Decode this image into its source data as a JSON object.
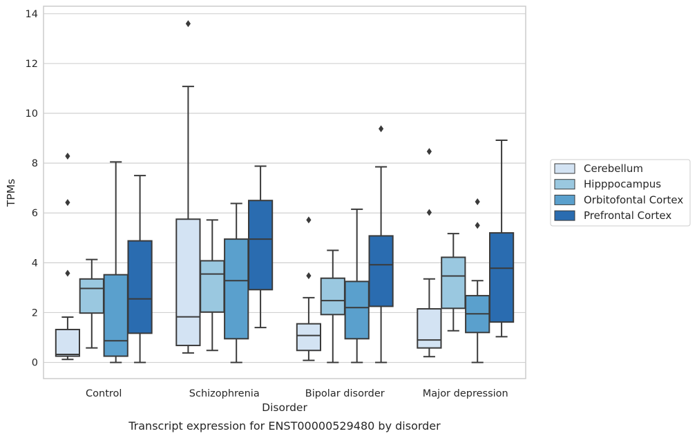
{
  "chart_data": {
    "type": "box",
    "xlabel": "Disorder",
    "ylabel": "TPMs",
    "caption": "Transcript expression for ENST00000529480 by disorder",
    "categories": [
      "Control",
      "Schizophrenia",
      "Bipolar disorder",
      "Major depression"
    ],
    "ylim": [
      -0.65,
      14.3
    ],
    "yticks": [
      0,
      2,
      4,
      6,
      8,
      10,
      12,
      14
    ],
    "grid": true,
    "legend_position": "right",
    "series": [
      {
        "name": "Cerebellum",
        "color": "#d3e3f3",
        "boxes": [
          {
            "q1": 0.25,
            "median": 0.32,
            "q3": 1.32,
            "whislo": 0.12,
            "whishi": 1.82,
            "fliers": [
              3.58,
              6.42,
              8.28
            ]
          },
          {
            "q1": 0.68,
            "median": 1.83,
            "q3": 5.75,
            "whislo": 0.38,
            "whishi": 11.08,
            "fliers": [
              13.6
            ]
          },
          {
            "q1": 0.48,
            "median": 1.08,
            "q3": 1.55,
            "whislo": 0.08,
            "whishi": 2.6,
            "fliers": [
              3.48,
              5.72
            ]
          },
          {
            "q1": 0.58,
            "median": 0.9,
            "q3": 2.15,
            "whislo": 0.23,
            "whishi": 3.35,
            "fliers": [
              6.02,
              8.47
            ]
          }
        ]
      },
      {
        "name": "Hipppocampus",
        "color": "#9ac8e0",
        "boxes": [
          {
            "q1": 1.98,
            "median": 2.97,
            "q3": 3.35,
            "whislo": 0.58,
            "whishi": 4.13,
            "fliers": []
          },
          {
            "q1": 2.02,
            "median": 3.55,
            "q3": 4.08,
            "whislo": 0.48,
            "whishi": 5.72,
            "fliers": []
          },
          {
            "q1": 1.92,
            "median": 2.48,
            "q3": 3.38,
            "whislo": 0.0,
            "whishi": 4.5,
            "fliers": []
          },
          {
            "q1": 2.17,
            "median": 3.47,
            "q3": 4.22,
            "whislo": 1.27,
            "whishi": 5.17,
            "fliers": []
          }
        ]
      },
      {
        "name": "Orbitofontal Cortex",
        "color": "#5aa0cd",
        "boxes": [
          {
            "q1": 0.25,
            "median": 0.87,
            "q3": 3.52,
            "whislo": 0.0,
            "whishi": 8.05,
            "fliers": []
          },
          {
            "q1": 0.95,
            "median": 3.28,
            "q3": 4.95,
            "whislo": 0.0,
            "whishi": 6.38,
            "fliers": []
          },
          {
            "q1": 0.95,
            "median": 2.2,
            "q3": 3.25,
            "whislo": 0.0,
            "whishi": 6.15,
            "fliers": []
          },
          {
            "q1": 1.2,
            "median": 1.95,
            "q3": 2.68,
            "whislo": 0.0,
            "whishi": 3.28,
            "fliers": [
              5.5,
              6.45
            ]
          }
        ]
      },
      {
        "name": "Prefrontal Cortex",
        "color": "#2a6cb0",
        "boxes": [
          {
            "q1": 1.17,
            "median": 2.55,
            "q3": 4.88,
            "whislo": 0.0,
            "whishi": 7.5,
            "fliers": []
          },
          {
            "q1": 2.92,
            "median": 4.95,
            "q3": 6.5,
            "whislo": 1.4,
            "whishi": 7.88,
            "fliers": []
          },
          {
            "q1": 2.25,
            "median": 3.92,
            "q3": 5.08,
            "whislo": 0.0,
            "whishi": 7.85,
            "fliers": [
              9.38
            ]
          },
          {
            "q1": 1.62,
            "median": 3.78,
            "q3": 5.2,
            "whislo": 1.03,
            "whishi": 8.92,
            "fliers": []
          }
        ]
      }
    ]
  }
}
